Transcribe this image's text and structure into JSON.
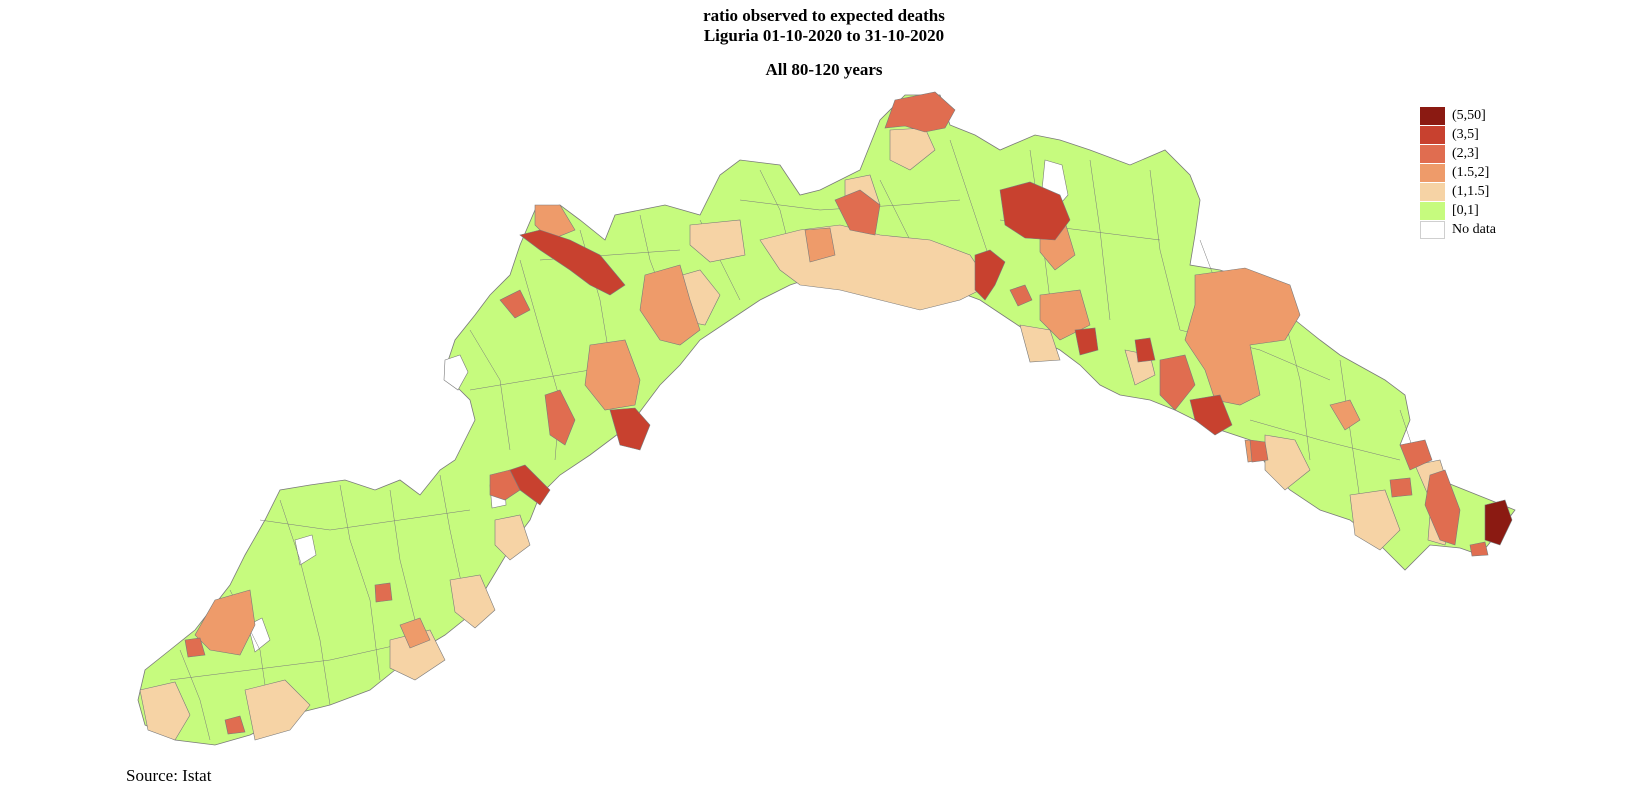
{
  "title": {
    "line1": "ratio observed to expected deaths",
    "line2": "Liguria 01-10-2020 to 31-10-2020",
    "subtitle": "All 80-120 years"
  },
  "source": "Source: Istat",
  "legend": [
    {
      "label": "(5,50]",
      "color": "#8b1a12"
    },
    {
      "label": "(3,5]",
      "color": "#c8412f"
    },
    {
      "label": "(2,3]",
      "color": "#e06d50"
    },
    {
      "label": "(1.5,2]",
      "color": "#ee9b6a"
    },
    {
      "label": "(1,1.5]",
      "color": "#f6d3a5"
    },
    {
      "label": "[0,1]",
      "color": "#c6fb7e"
    },
    {
      "label": "No data",
      "color": "#ffffff"
    }
  ],
  "map": {
    "land_color": "#c6fb7e",
    "border_color": "#7a7a7a"
  }
}
